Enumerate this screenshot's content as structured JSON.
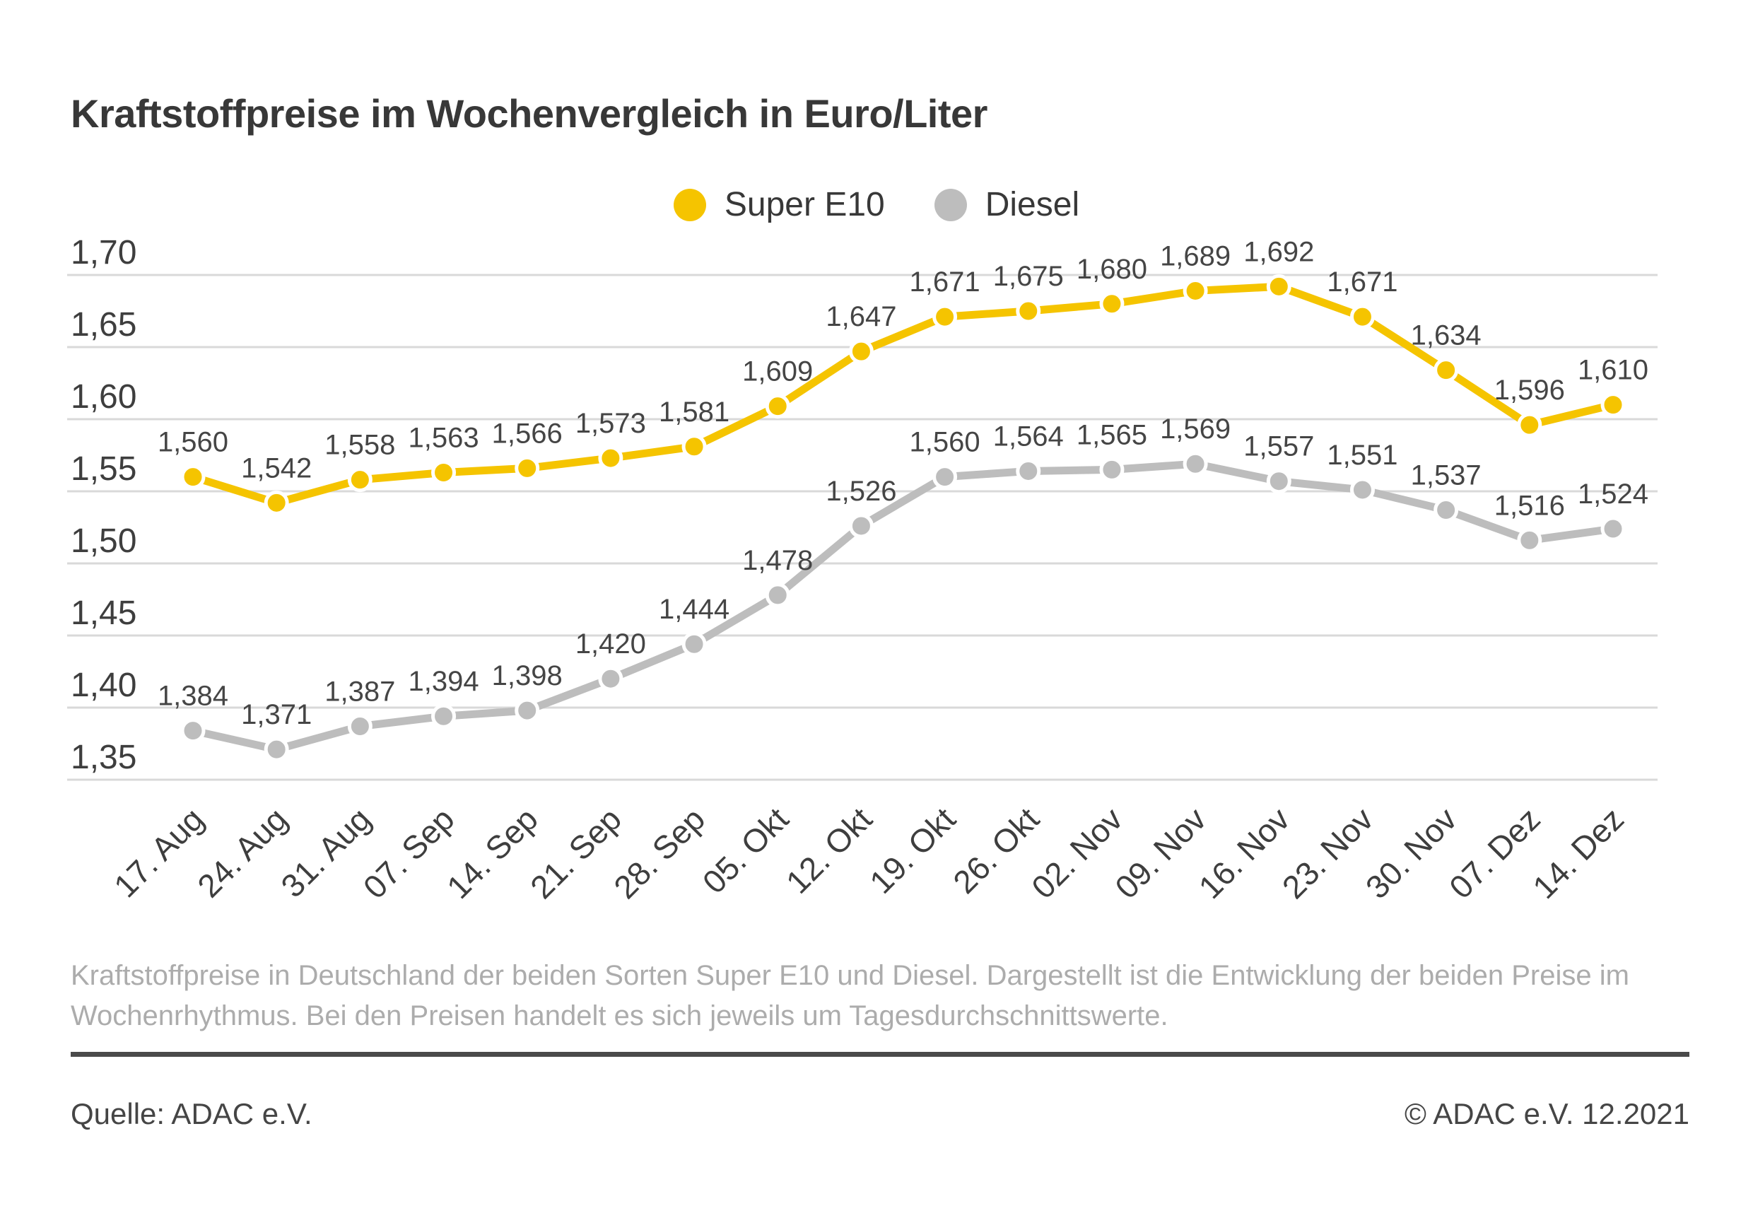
{
  "page": {
    "background": "#FFFFFF"
  },
  "header": {
    "title": "Kraftstoffpreise im Wochenvergleich in Euro/Liter"
  },
  "legend": [
    {
      "label": "Super E10",
      "color": "#F5C400"
    },
    {
      "label": "Diesel",
      "color": "#BDBDBD"
    }
  ],
  "chart_data": {
    "type": "line",
    "categories": [
      "17. Aug",
      "24. Aug",
      "31. Aug",
      "07. Sep",
      "14. Sep",
      "21. Sep",
      "28. Sep",
      "05. Okt",
      "12. Okt",
      "19. Okt",
      "26. Okt",
      "02. Nov",
      "09. Nov",
      "16. Nov",
      "23. Nov",
      "30. Nov",
      "07. Dez",
      "14. Dez"
    ],
    "series": [
      {
        "name": "Super E10",
        "color": "#F5C400",
        "values": [
          1.56,
          1.542,
          1.558,
          1.563,
          1.566,
          1.573,
          1.581,
          1.609,
          1.647,
          1.671,
          1.675,
          1.68,
          1.689,
          1.692,
          1.671,
          1.634,
          1.596,
          1.61
        ]
      },
      {
        "name": "Diesel",
        "color": "#BDBDBD",
        "values": [
          1.384,
          1.371,
          1.387,
          1.394,
          1.398,
          1.42,
          1.444,
          1.478,
          1.526,
          1.56,
          1.564,
          1.565,
          1.569,
          1.557,
          1.551,
          1.537,
          1.516,
          1.524
        ]
      }
    ],
    "ylim": [
      1.35,
      1.7
    ],
    "ytick_step": 0.05,
    "ytick_labels": [
      "1,70",
      "1,65",
      "1,60",
      "1,55",
      "1,50",
      "1,45",
      "1,40",
      "1,35"
    ],
    "decimal_separator": ",",
    "grid": true,
    "grid_color": "#D9D9D9",
    "axis_text_color": "#3E3E3E",
    "point_label_color": "#454545",
    "legend_position": "top",
    "data_labels": true
  },
  "footer": {
    "description": "Kraftstoffpreise in Deutschland der beiden Sorten Super E10 und Diesel. Dargestellt ist die Entwicklung der beiden Preise im Wochenrhythmus. Bei den Preisen handelt es sich jeweils um Tagesdurchschnittswerte.",
    "source": "Quelle: ADAC e.V.",
    "copyright": "© ADAC e.V. 12.2021"
  }
}
